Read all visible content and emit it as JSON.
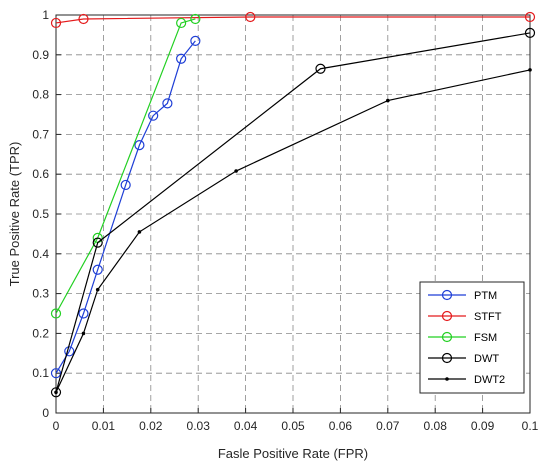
{
  "chart_data": {
    "type": "line",
    "title": "",
    "xlabel": "Fasle Positive Rate (FPR)",
    "ylabel": "True Positive Rate (TPR)",
    "xlim": [
      0,
      0.1
    ],
    "ylim": [
      0,
      1
    ],
    "xticks": [
      "0",
      "0.01",
      "0.02",
      "0.03",
      "0.04",
      "0.05",
      "0.06",
      "0.07",
      "0.08",
      "0.09",
      "0.1"
    ],
    "yticks": [
      "0",
      "0.1",
      "0.2",
      "0.3",
      "0.4",
      "0.5",
      "0.6",
      "0.7",
      "0.8",
      "0.9",
      "1"
    ],
    "grid": true,
    "legend_position": "bottom-right",
    "series": [
      {
        "name": "PTM",
        "color": "#1f3fd6",
        "marker": "circle",
        "x": [
          0,
          0.0028,
          0.0058,
          0.0088,
          0.0147,
          0.0176,
          0.0205,
          0.0235,
          0.0264,
          0.0294
        ],
        "y": [
          0.1,
          0.155,
          0.25,
          0.36,
          0.573,
          0.673,
          0.747,
          0.778,
          0.89,
          0.935
        ]
      },
      {
        "name": "STFT",
        "color": "#e41a1c",
        "marker": "circle",
        "x": [
          0,
          0.0058,
          0.041,
          0.1
        ],
        "y": [
          0.98,
          0.99,
          0.995,
          0.995
        ]
      },
      {
        "name": "FSM",
        "color": "#22d022",
        "marker": "circle",
        "x": [
          0,
          0.0088,
          0.0264,
          0.0294
        ],
        "y": [
          0.25,
          0.44,
          0.98,
          0.99
        ]
      },
      {
        "name": "DWT",
        "color": "#000000",
        "marker": "circle",
        "x": [
          0,
          0.0088,
          0.0558,
          0.1
        ],
        "y": [
          0.052,
          0.428,
          0.865,
          0.955
        ]
      },
      {
        "name": "DWT2",
        "color": "#000000",
        "marker": "dot",
        "x": [
          0,
          0.0058,
          0.0088,
          0.0176,
          0.038,
          0.07,
          0.1
        ],
        "y": [
          0.052,
          0.2,
          0.31,
          0.455,
          0.608,
          0.785,
          0.862
        ]
      }
    ]
  }
}
